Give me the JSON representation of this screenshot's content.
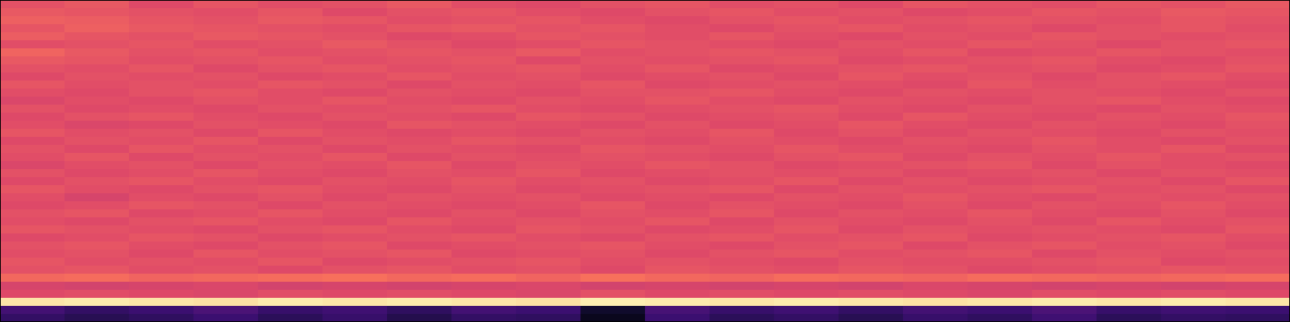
{
  "chart_data": {
    "type": "heatmap",
    "color": "magma",
    "tick_labels": false,
    "zlim": [
      0,
      100
    ],
    "cells": [
      [
        62,
        64,
        60,
        63,
        61,
        62,
        64,
        61,
        60,
        62,
        63,
        61,
        62,
        60,
        63,
        62,
        61,
        63,
        62,
        64
      ],
      [
        64,
        63,
        62,
        61,
        63,
        60,
        62,
        63,
        61,
        60,
        62,
        63,
        61,
        62,
        60,
        61,
        63,
        62,
        64,
        63
      ],
      [
        66,
        65,
        63,
        62,
        64,
        63,
        61,
        62,
        63,
        61,
        60,
        62,
        63,
        61,
        62,
        63,
        62,
        61,
        63,
        62
      ],
      [
        63,
        66,
        64,
        63,
        62,
        61,
        63,
        64,
        62,
        63,
        61,
        60,
        62,
        63,
        61,
        62,
        60,
        62,
        63,
        61
      ],
      [
        65,
        63,
        62,
        64,
        63,
        62,
        60,
        61,
        63,
        62,
        61,
        63,
        61,
        60,
        62,
        61,
        63,
        62,
        61,
        62
      ],
      [
        61,
        62,
        63,
        61,
        62,
        64,
        62,
        60,
        61,
        63,
        62,
        61,
        60,
        62,
        61,
        63,
        62,
        60,
        62,
        63
      ],
      [
        67,
        64,
        62,
        63,
        61,
        62,
        63,
        62,
        64,
        61,
        62,
        63,
        62,
        61,
        63,
        60,
        61,
        63,
        62,
        61
      ],
      [
        64,
        63,
        61,
        62,
        63,
        61,
        62,
        63,
        60,
        62,
        61,
        62,
        63,
        60,
        61,
        62,
        63,
        61,
        60,
        62
      ],
      [
        62,
        61,
        63,
        60,
        62,
        63,
        61,
        62,
        63,
        61,
        63,
        60,
        61,
        62,
        63,
        61,
        62,
        60,
        61,
        63
      ],
      [
        60,
        62,
        61,
        62,
        60,
        61,
        63,
        61,
        62,
        60,
        61,
        62,
        60,
        63,
        61,
        62,
        60,
        62,
        63,
        61
      ],
      [
        63,
        61,
        62,
        61,
        63,
        62,
        60,
        62,
        61,
        63,
        60,
        61,
        62,
        61,
        60,
        63,
        61,
        62,
        61,
        60
      ],
      [
        61,
        60,
        62,
        63,
        61,
        60,
        62,
        61,
        60,
        62,
        62,
        63,
        61,
        60,
        62,
        61,
        62,
        61,
        60,
        62
      ],
      [
        59,
        61,
        60,
        62,
        61,
        63,
        61,
        60,
        62,
        61,
        63,
        61,
        60,
        62,
        61,
        60,
        62,
        63,
        61,
        60
      ],
      [
        62,
        60,
        61,
        60,
        62,
        61,
        62,
        63,
        61,
        60,
        61,
        62,
        63,
        61,
        60,
        62,
        61,
        60,
        62,
        61
      ],
      [
        60,
        62,
        63,
        61,
        60,
        62,
        61,
        60,
        63,
        62,
        60,
        61,
        62,
        60,
        63,
        61,
        60,
        62,
        61,
        63
      ],
      [
        61,
        59,
        60,
        62,
        61,
        60,
        63,
        62,
        61,
        60,
        62,
        60,
        61,
        63,
        61,
        60,
        62,
        61,
        60,
        62
      ],
      [
        63,
        61,
        62,
        60,
        63,
        61,
        60,
        61,
        60,
        62,
        61,
        63,
        60,
        62,
        60,
        62,
        61,
        60,
        62,
        61
      ],
      [
        60,
        62,
        61,
        63,
        60,
        62,
        61,
        63,
        62,
        61,
        60,
        62,
        61,
        60,
        62,
        61,
        63,
        61,
        60,
        62
      ],
      [
        62,
        60,
        63,
        61,
        62,
        60,
        62,
        61,
        60,
        63,
        62,
        61,
        63,
        61,
        61,
        60,
        62,
        61,
        63,
        60
      ],
      [
        61,
        63,
        60,
        62,
        61,
        63,
        60,
        62,
        61,
        62,
        61,
        60,
        62,
        63,
        60,
        62,
        61,
        63,
        61,
        62
      ],
      [
        59,
        61,
        62,
        60,
        62,
        61,
        63,
        60,
        62,
        61,
        63,
        62,
        60,
        61,
        62,
        63,
        60,
        62,
        61,
        60
      ],
      [
        62,
        60,
        61,
        63,
        61,
        60,
        62,
        61,
        63,
        60,
        61,
        62,
        61,
        62,
        60,
        61,
        62,
        60,
        62,
        61
      ],
      [
        60,
        62,
        63,
        61,
        60,
        62,
        61,
        63,
        61,
        62,
        60,
        61,
        63,
        60,
        62,
        60,
        61,
        62,
        60,
        63
      ],
      [
        63,
        61,
        60,
        62,
        63,
        61,
        60,
        62,
        60,
        61,
        62,
        63,
        60,
        62,
        61,
        62,
        63,
        61,
        62,
        60
      ],
      [
        61,
        58,
        61,
        60,
        62,
        60,
        62,
        61,
        62,
        60,
        61,
        60,
        62,
        61,
        63,
        61,
        60,
        62,
        61,
        62
      ],
      [
        60,
        61,
        63,
        62,
        60,
        62,
        61,
        60,
        61,
        63,
        60,
        62,
        61,
        60,
        62,
        60,
        62,
        61,
        63,
        61
      ],
      [
        62,
        63,
        60,
        61,
        63,
        61,
        60,
        62,
        60,
        62,
        61,
        63,
        60,
        62,
        61,
        63,
        61,
        60,
        62,
        60
      ],
      [
        61,
        60,
        62,
        63,
        61,
        60,
        63,
        61,
        62,
        61,
        63,
        60,
        62,
        61,
        60,
        62,
        60,
        63,
        61,
        62
      ],
      [
        63,
        62,
        61,
        60,
        62,
        63,
        61,
        60,
        63,
        62,
        60,
        61,
        63,
        60,
        62,
        61,
        62,
        61,
        60,
        63
      ],
      [
        60,
        61,
        63,
        62,
        60,
        61,
        62,
        63,
        61,
        60,
        62,
        63,
        61,
        62,
        63,
        60,
        61,
        62,
        63,
        61
      ],
      [
        62,
        63,
        61,
        60,
        62,
        63,
        60,
        61,
        62,
        63,
        61,
        60,
        62,
        63,
        60,
        62,
        63,
        61,
        62,
        60
      ],
      [
        61,
        62,
        60,
        63,
        61,
        62,
        63,
        60,
        61,
        62,
        60,
        62,
        63,
        61,
        62,
        63,
        60,
        62,
        61,
        62
      ],
      [
        63,
        61,
        62,
        61,
        63,
        60,
        61,
        62,
        63,
        61,
        62,
        61,
        60,
        62,
        61,
        61,
        62,
        63,
        60,
        61
      ],
      [
        62,
        63,
        61,
        62,
        60,
        62,
        63,
        61,
        62,
        60,
        63,
        62,
        61,
        63,
        62,
        60,
        61,
        62,
        63,
        62
      ],
      [
        68,
        69,
        67,
        68,
        69,
        70,
        68,
        69,
        67,
        70,
        68,
        67,
        69,
        68,
        67,
        69,
        68,
        67,
        68,
        69
      ],
      [
        58,
        57,
        58,
        59,
        57,
        58,
        57,
        58,
        59,
        57,
        58,
        57,
        58,
        57,
        59,
        58,
        57,
        58,
        57,
        58
      ],
      [
        60,
        61,
        60,
        59,
        61,
        60,
        61,
        60,
        59,
        62,
        60,
        61,
        60,
        61,
        60,
        59,
        61,
        60,
        61,
        60
      ],
      [
        95,
        96,
        95,
        94,
        96,
        95,
        96,
        95,
        94,
        97,
        96,
        95,
        96,
        95,
        94,
        95,
        96,
        95,
        96,
        95
      ],
      [
        22,
        18,
        20,
        24,
        19,
        21,
        17,
        22,
        20,
        8,
        23,
        19,
        21,
        18,
        22,
        20,
        24,
        19,
        21,
        20
      ],
      [
        18,
        15,
        17,
        20,
        16,
        19,
        14,
        18,
        17,
        5,
        20,
        16,
        18,
        15,
        19,
        17,
        21,
        16,
        18,
        17
      ]
    ]
  }
}
